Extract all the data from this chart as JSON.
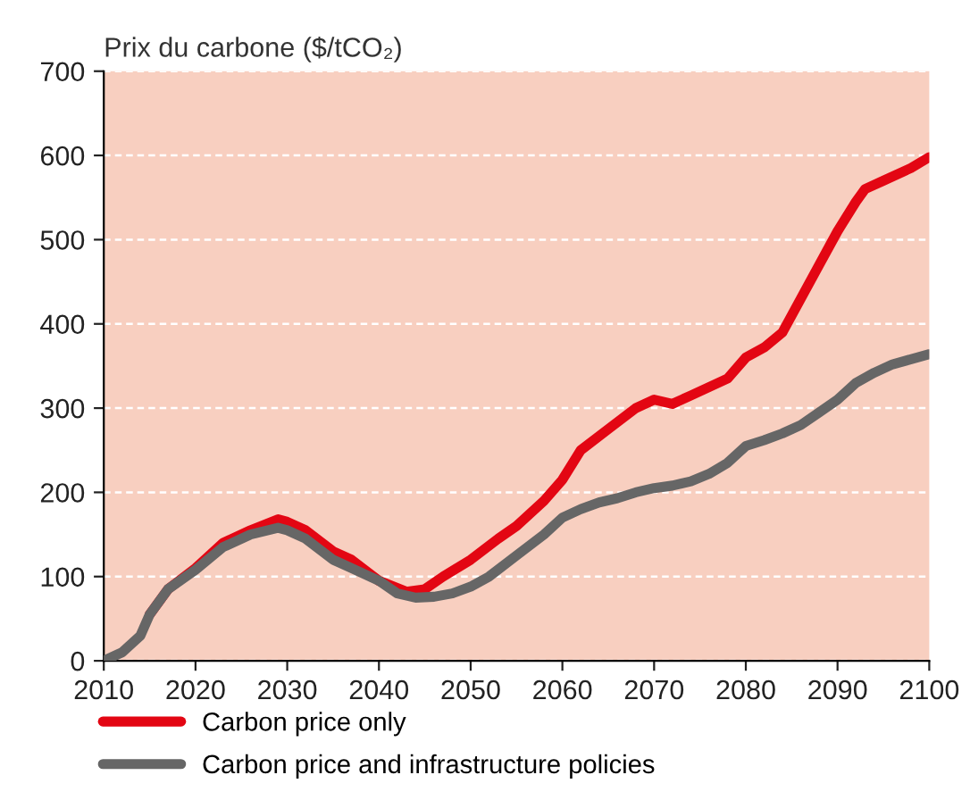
{
  "chart_data": {
    "type": "line",
    "ylabel": "Prix du carbone ($/tCO₂)",
    "xlim": [
      2010,
      2100
    ],
    "xticks": [
      2010,
      2020,
      2030,
      2040,
      2050,
      2060,
      2070,
      2080,
      2090,
      2100
    ],
    "ylim": [
      0,
      700
    ],
    "yticks": [
      0,
      100,
      200,
      300,
      400,
      500,
      600,
      700
    ],
    "grid": "y",
    "legend": "bottom",
    "line_style": "solid",
    "marker": "none",
    "series": [
      {
        "name": "Carbon price only",
        "color": "#e30613",
        "x": [
          2015,
          2017,
          2020,
          2023,
          2026,
          2029,
          2030,
          2032,
          2035,
          2037,
          2040,
          2043,
          2045,
          2047,
          2050,
          2053,
          2055,
          2058,
          2060,
          2062,
          2065,
          2068,
          2070,
          2072,
          2074,
          2076,
          2078,
          2080,
          2082,
          2084,
          2086,
          2088,
          2090,
          2092,
          2093,
          2095,
          2098,
          2100
        ],
        "values": [
          55,
          85,
          110,
          140,
          155,
          168,
          165,
          155,
          130,
          120,
          95,
          82,
          85,
          100,
          120,
          145,
          160,
          190,
          215,
          250,
          275,
          300,
          310,
          305,
          315,
          325,
          335,
          360,
          372,
          390,
          430,
          470,
          510,
          545,
          560,
          570,
          585,
          598
        ]
      },
      {
        "name": "Carbon price and infrastructure policies",
        "color": "#666666",
        "x": [
          2010,
          2012,
          2014,
          2015,
          2017,
          2020,
          2023,
          2026,
          2029,
          2030,
          2032,
          2035,
          2037,
          2040,
          2042,
          2044,
          2046,
          2048,
          2050,
          2052,
          2055,
          2058,
          2060,
          2062,
          2064,
          2066,
          2068,
          2070,
          2072,
          2074,
          2076,
          2078,
          2080,
          2082,
          2084,
          2086,
          2088,
          2090,
          2092,
          2094,
          2096,
          2098,
          2100
        ],
        "values": [
          0,
          10,
          30,
          55,
          85,
          108,
          135,
          150,
          158,
          155,
          145,
          120,
          110,
          95,
          80,
          75,
          76,
          80,
          88,
          100,
          125,
          150,
          170,
          180,
          188,
          193,
          200,
          205,
          208,
          213,
          222,
          235,
          255,
          262,
          270,
          280,
          295,
          310,
          330,
          342,
          352,
          358,
          364
        ]
      }
    ]
  }
}
